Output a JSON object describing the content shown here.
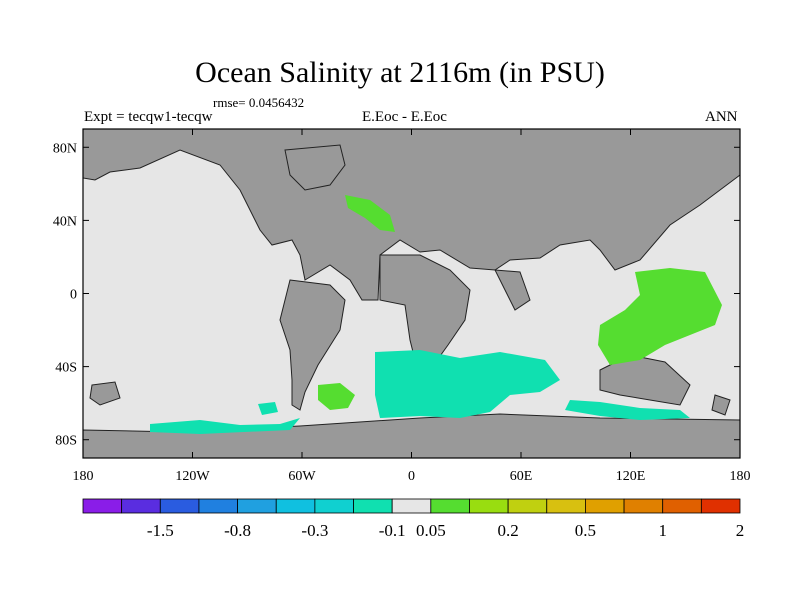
{
  "title": "Ocean Salinity at 2116m (in PSU)",
  "rmse_text": "rmse= 0.0456432",
  "left_label": "Expt = tecqw1-tecqw",
  "center_label": "E.Eoc - E.Eoc",
  "right_label": "ANN",
  "map": {
    "lon_range": [
      -180,
      180
    ],
    "lat_range": [
      -90,
      90
    ],
    "land_color": "#999999",
    "ocean_color": "#e6e6e6",
    "x_ticks": [
      {
        "lon": -180,
        "label": "180"
      },
      {
        "lon": -120,
        "label": "120W"
      },
      {
        "lon": -60,
        "label": "60W"
      },
      {
        "lon": 0,
        "label": "0"
      },
      {
        "lon": 60,
        "label": "60E"
      },
      {
        "lon": 120,
        "label": "120E"
      },
      {
        "lon": 180,
        "label": "180"
      }
    ],
    "y_ticks": [
      {
        "lat": 80,
        "label": "80N"
      },
      {
        "lat": 40,
        "label": "40N"
      },
      {
        "lat": 0,
        "label": "0"
      },
      {
        "lat": -40,
        "label": "40S"
      },
      {
        "lat": -80,
        "label": "80S"
      }
    ]
  },
  "colorbar": {
    "colors": [
      "#8a1de8",
      "#5a2de0",
      "#2a5ce0",
      "#2080e0",
      "#20a0e0",
      "#10c0e0",
      "#10d0d0",
      "#10e0b0",
      "#e6e6e6",
      "#55dd30",
      "#99dd10",
      "#c0d010",
      "#d8c010",
      "#e0a000",
      "#e08000",
      "#e06000",
      "#e03000"
    ],
    "labels": [
      {
        "after_box": 2,
        "text": "-1.5"
      },
      {
        "after_box": 4,
        "text": "-0.8"
      },
      {
        "after_box": 6,
        "text": "-0.3"
      },
      {
        "after_box": 8,
        "text": "-0.1"
      },
      {
        "after_box": 9,
        "text": "0.05"
      },
      {
        "after_box": 11,
        "text": "0.2"
      },
      {
        "after_box": 13,
        "text": "0.5"
      },
      {
        "after_box": 15,
        "text": "1"
      },
      {
        "after_box": 17,
        "text": "2"
      }
    ]
  }
}
